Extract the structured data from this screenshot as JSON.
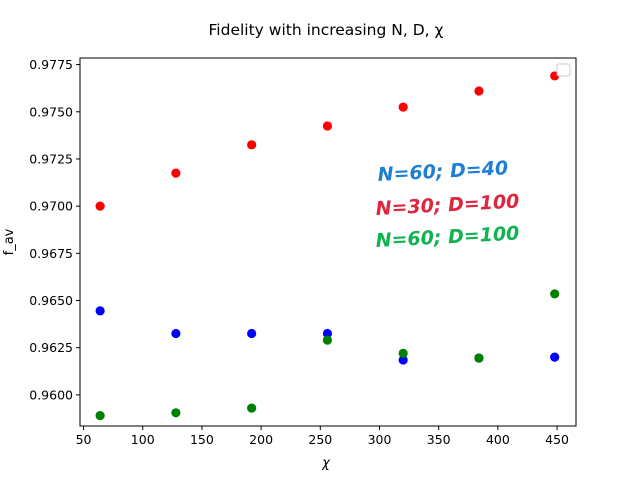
{
  "chart_data": {
    "type": "scatter",
    "title": "Fidelity with increasing N, D, χ",
    "xlabel": "χ",
    "ylabel": "f_av",
    "xlim": [
      47,
      466
    ],
    "ylim": [
      0.95835,
      0.97785
    ],
    "x_ticks": [
      50,
      100,
      150,
      200,
      250,
      300,
      350,
      400,
      450
    ],
    "x_tick_labels": [
      "50",
      "100",
      "150",
      "200",
      "250",
      "300",
      "350",
      "400",
      "450"
    ],
    "y_ticks": [
      0.96,
      0.9625,
      0.965,
      0.9675,
      0.97,
      0.9725,
      0.975,
      0.9775
    ],
    "y_tick_labels": [
      "0.9600",
      "0.9625",
      "0.9650",
      "0.9675",
      "0.9700",
      "0.9725",
      "0.9750",
      "0.9775"
    ],
    "grid": false,
    "legend": "top-right (empty)",
    "x": [
      64,
      128,
      192,
      256,
      320,
      384,
      448
    ],
    "series": [
      {
        "color": "#ff0000",
        "values": [
          0.97,
          0.97175,
          0.97325,
          0.97425,
          0.97525,
          0.9761,
          0.9769
        ]
      },
      {
        "color": "#0000ff",
        "values": [
          0.96445,
          0.96325,
          0.96325,
          0.96325,
          0.96185,
          0.96195,
          0.962
        ]
      },
      {
        "color": "#008000",
        "values": [
          0.9589,
          0.95905,
          0.9593,
          0.9629,
          0.9622,
          0.96195,
          0.96535
        ]
      }
    ],
    "annotations": [
      {
        "text": "N=60;  D=40",
        "color": "#1f7fd6"
      },
      {
        "text": "N=30;  D=100",
        "color": "#e0253f"
      },
      {
        "text": "N=60;  D=100",
        "color": "#10b34f"
      }
    ]
  }
}
